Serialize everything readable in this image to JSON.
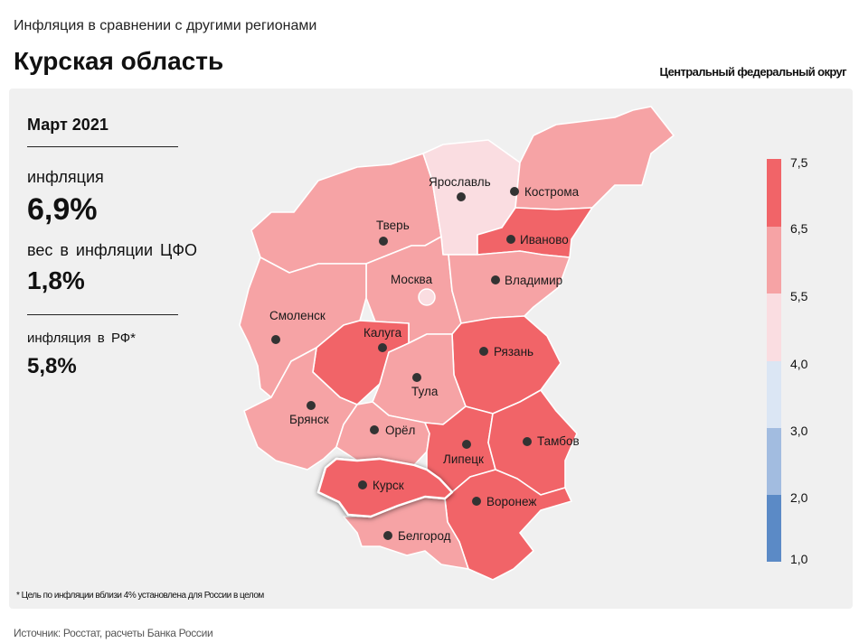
{
  "header": {
    "subtitle": "Инфляция в сравнении с другими регионами",
    "title": "Курская область",
    "district": "Центральный федеральный округ"
  },
  "info": {
    "period": "Март 2021",
    "inflation_label": "инфляция",
    "inflation_value": "6,9%",
    "weight_label": "вес в инфляции ЦФО",
    "weight_value": "1,8%",
    "rf_label": "инфляция в РФ*",
    "rf_value": "5,8%"
  },
  "footnote": "* Цель по инфляции вблизи 4% установлена для России в целом",
  "source": "Источник: Росстат, расчеты Банка России",
  "legend": {
    "ticks": [
      "7,5",
      "6,5",
      "5,5",
      "4,0",
      "3,0",
      "2,0",
      "1,0"
    ],
    "colors": [
      "#f16468",
      "#f6a3a5",
      "#fadde1",
      "#dbe6f4",
      "#a2bce0",
      "#5b8ac6"
    ]
  },
  "colors": {
    "high": "#f16468",
    "medium": "#f6a3a5",
    "low": "#fadde1",
    "highlight_outline": "#ffffff"
  },
  "regions": [
    {
      "name": "Ярославль",
      "class": "low"
    },
    {
      "name": "Кострома",
      "class": "medium"
    },
    {
      "name": "Тверь",
      "class": "medium"
    },
    {
      "name": "Иваново",
      "class": "high"
    },
    {
      "name": "Москва",
      "class": "medium"
    },
    {
      "name": "Владимир",
      "class": "medium"
    },
    {
      "name": "Смоленск",
      "class": "medium"
    },
    {
      "name": "Калуга",
      "class": "high"
    },
    {
      "name": "Рязань",
      "class": "high"
    },
    {
      "name": "Тула",
      "class": "medium"
    },
    {
      "name": "Брянск",
      "class": "medium"
    },
    {
      "name": "Орёл",
      "class": "medium"
    },
    {
      "name": "Липецк",
      "class": "high"
    },
    {
      "name": "Тамбов",
      "class": "high"
    },
    {
      "name": "Курск",
      "class": "high",
      "highlighted": true
    },
    {
      "name": "Воронеж",
      "class": "high"
    },
    {
      "name": "Белгород",
      "class": "medium"
    }
  ]
}
